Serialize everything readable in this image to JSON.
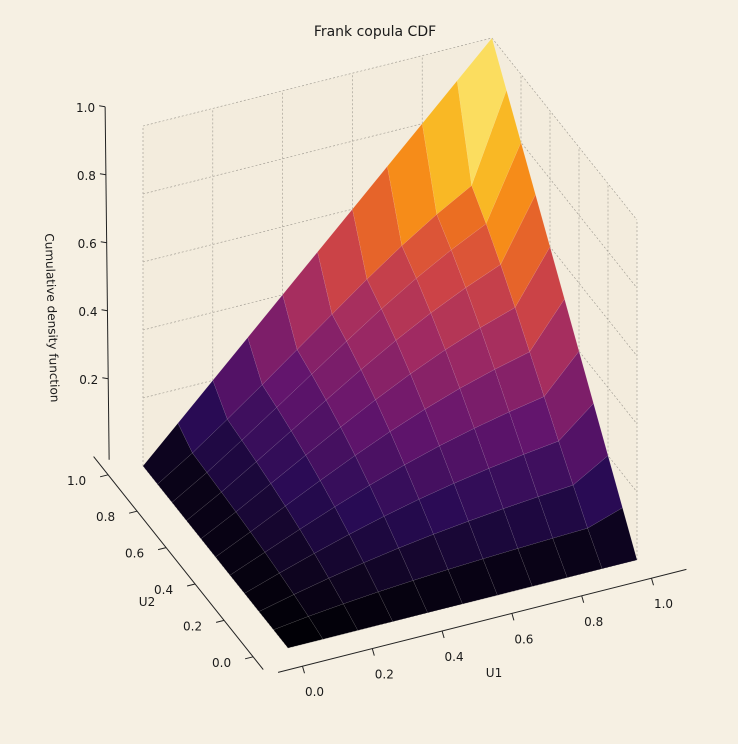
{
  "chart_data": {
    "type": "surface",
    "title": "Frank copula CDF",
    "xlabel": "U1",
    "ylabel": "U2",
    "zlabel": "Cumulative density function",
    "x_ticks": [
      "0.0",
      "0.2",
      "0.4",
      "0.6",
      "0.8",
      "1.0"
    ],
    "y_ticks": [
      "0.0",
      "0.2",
      "0.4",
      "0.6",
      "0.8",
      "1.0"
    ],
    "z_ticks": [
      "0.2",
      "0.4",
      "0.6",
      "0.8",
      "1.0"
    ],
    "xlim": [
      0,
      1
    ],
    "ylim": [
      0,
      1
    ],
    "zlim": [
      0,
      1
    ],
    "colormap": "inferno",
    "grid": true,
    "theta": 3,
    "surface_z": [
      [
        0,
        0,
        0,
        0,
        0,
        0,
        0,
        0,
        0,
        0,
        0
      ],
      [
        0,
        0.0135,
        0.0245,
        0.0337,
        0.0414,
        0.0478,
        0.0533,
        0.058,
        0.0621,
        0.0658,
        0.1
      ],
      [
        0,
        0.0245,
        0.0464,
        0.066,
        0.0831,
        0.0979,
        0.1106,
        0.1215,
        0.1309,
        0.1391,
        0.2
      ],
      [
        0,
        0.0337,
        0.066,
        0.096,
        0.1232,
        0.1473,
        0.1682,
        0.1862,
        0.2017,
        0.2151,
        0.3
      ],
      [
        0,
        0.0414,
        0.0831,
        0.1232,
        0.1609,
        0.195,
        0.2251,
        0.251,
        0.2732,
        0.2923,
        0.4
      ],
      [
        0,
        0.0478,
        0.0979,
        0.1473,
        0.195,
        0.2395,
        0.2795,
        0.3146,
        0.3447,
        0.3703,
        0.5
      ],
      [
        0,
        0.0533,
        0.1106,
        0.1682,
        0.2251,
        0.2795,
        0.3297,
        0.3746,
        0.4139,
        0.4474,
        0.6
      ],
      [
        0,
        0.058,
        0.1215,
        0.1862,
        0.251,
        0.3146,
        0.3746,
        0.4293,
        0.478,
        0.5203,
        0.7
      ],
      [
        0,
        0.0621,
        0.1309,
        0.2017,
        0.2732,
        0.3447,
        0.4139,
        0.478,
        0.5357,
        0.5866,
        0.8
      ],
      [
        0,
        0.0658,
        0.1391,
        0.2151,
        0.2923,
        0.3703,
        0.4474,
        0.5203,
        0.5866,
        0.6453,
        0.9
      ],
      [
        0,
        0.1,
        0.2,
        0.3,
        0.4,
        0.5,
        0.6,
        0.7,
        0.8,
        0.9,
        1.0
      ]
    ]
  }
}
